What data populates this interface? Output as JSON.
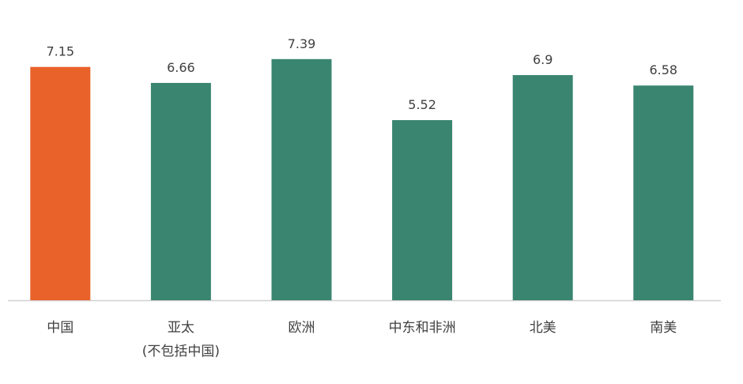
{
  "chart_data": {
    "type": "bar",
    "categories": [
      "中国",
      "亚太\n(不包括中国)",
      "欧洲",
      "中东和非洲",
      "北美",
      "南美"
    ],
    "values": [
      7.15,
      6.66,
      7.39,
      5.52,
      6.9,
      6.58
    ],
    "colors": [
      "#e8622a",
      "#3a8570",
      "#3a8570",
      "#3a8570",
      "#3a8570",
      "#3a8570"
    ]
  }
}
